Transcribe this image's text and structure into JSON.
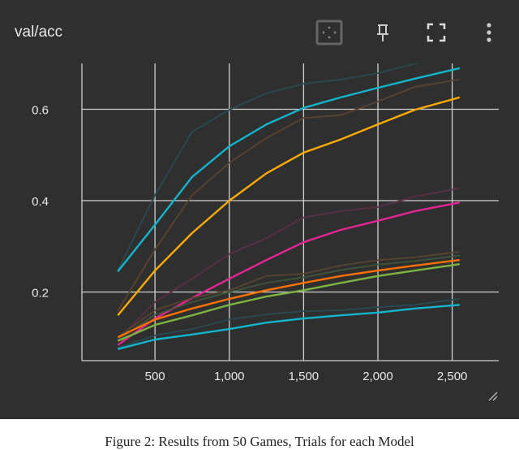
{
  "card": {
    "title": "val/acc",
    "toolbar": [
      {
        "icon": "fit-domain-icon",
        "label": "Fit domain to data"
      },
      {
        "icon": "pin-icon",
        "label": "Pin card"
      },
      {
        "icon": "fullscreen-icon",
        "label": "Toggle fullscreen"
      },
      {
        "icon": "more-vert-icon",
        "label": "More"
      }
    ]
  },
  "caption": "Figure 2: Results from 50 Games, Trials for each Model",
  "chart_data": {
    "type": "line",
    "title": "val/acc",
    "xlabel": "",
    "ylabel": "",
    "xlim": [
      0,
      2800
    ],
    "ylim": [
      0.05,
      0.7
    ],
    "grid": true,
    "x_ticks": [
      {
        "v": 500,
        "label": "500"
      },
      {
        "v": 1000,
        "label": "1,000"
      },
      {
        "v": 1500,
        "label": "1,500"
      },
      {
        "v": 2000,
        "label": "2,000"
      },
      {
        "v": 2500,
        "label": "2,500"
      }
    ],
    "y_ticks": [
      {
        "v": 0.2,
        "label": "0.2"
      },
      {
        "v": 0.4,
        "label": "0.4"
      },
      {
        "v": 0.6,
        "label": "0.6"
      }
    ],
    "x": [
      250,
      500,
      750,
      1000,
      1250,
      1500,
      1750,
      2000,
      2250,
      2550
    ],
    "series": [
      {
        "color": "#2a4a52",
        "faded": true,
        "values": [
          0.247,
          0.412,
          0.551,
          0.599,
          0.635,
          0.656,
          0.665,
          0.679,
          0.7,
          0.72
        ]
      },
      {
        "color": "#12b5cb",
        "values": [
          0.245,
          0.347,
          0.452,
          0.519,
          0.567,
          0.603,
          0.626,
          0.647,
          0.667,
          0.69
        ]
      },
      {
        "color": "#574331",
        "faded": true,
        "values": [
          0.158,
          0.293,
          0.412,
          0.483,
          0.537,
          0.581,
          0.587,
          0.617,
          0.649,
          0.665
        ]
      },
      {
        "color": "#f9ab00",
        "values": [
          0.149,
          0.247,
          0.329,
          0.4,
          0.46,
          0.505,
          0.534,
          0.567,
          0.599,
          0.626
        ]
      },
      {
        "color": "#5a2f47",
        "faded": true,
        "values": [
          0.096,
          0.178,
          0.229,
          0.283,
          0.318,
          0.363,
          0.377,
          0.386,
          0.409,
          0.427
        ]
      },
      {
        "color": "#e52592",
        "values": [
          0.084,
          0.142,
          0.187,
          0.229,
          0.27,
          0.309,
          0.336,
          0.356,
          0.377,
          0.396
        ]
      },
      {
        "color": "#574331",
        "faded": true,
        "values": [
          0.101,
          0.16,
          0.187,
          0.204,
          0.235,
          0.24,
          0.258,
          0.27,
          0.276,
          0.288
        ]
      },
      {
        "color": "#3e5538",
        "faded": true,
        "values": [
          0.095,
          0.15,
          0.178,
          0.2,
          0.22,
          0.232,
          0.248,
          0.26,
          0.268,
          0.28
        ]
      },
      {
        "color": "#ff7100",
        "values": [
          0.101,
          0.14,
          0.164,
          0.185,
          0.204,
          0.22,
          0.235,
          0.247,
          0.258,
          0.27
        ]
      },
      {
        "color": "#7cb342",
        "values": [
          0.093,
          0.128,
          0.149,
          0.172,
          0.19,
          0.204,
          0.22,
          0.235,
          0.247,
          0.261
        ]
      },
      {
        "color": "#2a4a52",
        "faded": true,
        "values": [
          0.078,
          0.105,
          0.119,
          0.14,
          0.151,
          0.158,
          0.16,
          0.167,
          0.172,
          0.185
        ]
      },
      {
        "color": "#12b5cb",
        "values": [
          0.075,
          0.096,
          0.107,
          0.119,
          0.133,
          0.142,
          0.149,
          0.155,
          0.164,
          0.172
        ]
      }
    ]
  }
}
